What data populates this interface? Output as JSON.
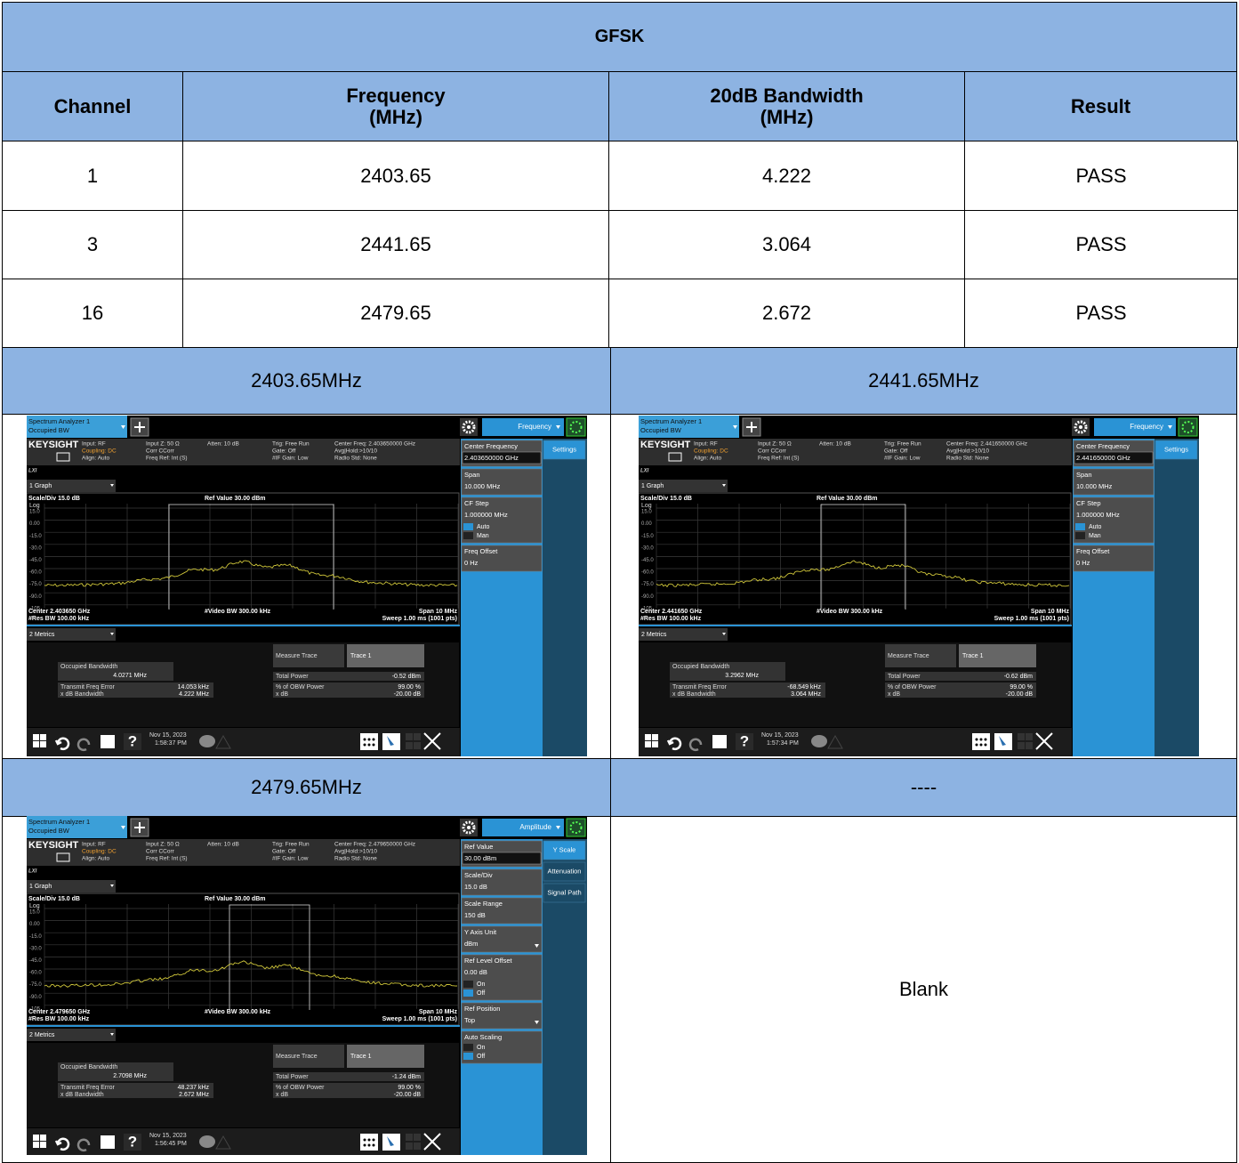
{
  "table": {
    "title": "GFSK",
    "header": [
      [
        "Channel"
      ],
      [
        "Frequency",
        "(MHz)"
      ],
      [
        "20dB Bandwidth",
        "(MHz)"
      ],
      [
        "Result"
      ]
    ],
    "rows": [
      [
        "1",
        "2403.65",
        "4.222",
        "PASS"
      ],
      [
        "3",
        "2441.65",
        "3.064",
        "PASS"
      ],
      [
        "16",
        "2479.65",
        "2.672",
        "PASS"
      ]
    ],
    "captions": [
      "2403.65MHz",
      "2441.65MHz",
      "2479.65MHz",
      "----"
    ],
    "blank": "Blank"
  },
  "screenshots": [
    {
      "tab": [
        "Spectrum Analyzer 1",
        "Occupied BW"
      ],
      "menu": "Frequency",
      "brand": "KEYSIGHT",
      "lxi": "LXI",
      "info": [
        [
          "Input: RF",
          "Coupling: DC",
          "Align: Auto"
        ],
        [
          "Input Z: 50 Ω",
          "Corr CCorr",
          "Freq Ref: Int (S)"
        ],
        [
          "Atten: 10 dB"
        ],
        [
          "Trig: Free Run",
          "Gate: Off",
          "#IF Gain: Low"
        ],
        [
          "Center Freq: 2.403650000 GHz",
          "Avg|Hold:>10/10",
          "Radio Std: None"
        ]
      ],
      "graph_tab": "1 Graph",
      "scale": "Scale/Div 15.0 dB",
      "log": "Log",
      "ref": "Ref Value 30.00 dBm",
      "y_labels": [
        "15.0",
        "0.00",
        "-15.0",
        "-30.0",
        "-45.0",
        "-60.0",
        "-75.0",
        "-90.0",
        "-105"
      ],
      "footer": {
        "center": "Center 2.403650 GHz",
        "res_bw": "#Res BW 100.00 kHz",
        "video_bw": "#Video BW 300.00 kHz",
        "span": "Span 10 MHz",
        "sweep": "Sweep 1.00 ms (1001 pts)"
      },
      "metrics_tab": "2 Metrics",
      "metrics": {
        "obw_label": "Occupied Bandwidth",
        "obw": "4.0271 MHz",
        "tfe_label": "Transmit Freq Error",
        "tfe": "14.053 kHz",
        "xdb_bw_label": "x dB Bandwidth",
        "xdb_bw": "4.222 MHz",
        "trace_label": "Measure Trace",
        "trace": "Trace 1",
        "power_label": "Total Power",
        "power": "-0.52 dBm",
        "obw_power_label": "% of OBW Power",
        "obw_power": "99.00 %",
        "xdb_label": "x dB",
        "xdb": "-20.00 dB"
      },
      "help": "?",
      "date": "Nov 15, 2023",
      "time": "1:58:37 PM",
      "menu_items": [
        {
          "label": "Center Frequency",
          "value": "2.403650000 GHz"
        },
        {
          "label": "Span",
          "value": "10.000 MHz"
        },
        {
          "label": "CF Step",
          "value": "1.000000 MHz",
          "options": [
            "Auto",
            "Man"
          ],
          "selected": 0
        },
        {
          "label": "Freq Offset",
          "value": "0 Hz"
        }
      ],
      "menu_tabs": [
        "Settings"
      ]
    },
    {
      "tab": [
        "Spectrum Analyzer 1",
        "Occupied BW"
      ],
      "menu": "Frequency",
      "brand": "KEYSIGHT",
      "lxi": "LXI",
      "info": [
        [
          "Input: RF",
          "Coupling: DC",
          "Align: Auto"
        ],
        [
          "Input Z: 50 Ω",
          "Corr CCorr",
          "Freq Ref: Int (S)"
        ],
        [
          "Atten: 10 dB"
        ],
        [
          "Trig: Free Run",
          "Gate: Off",
          "#IF Gain: Low"
        ],
        [
          "Center Freq: 2.441650000 GHz",
          "Avg|Hold:>10/10",
          "Radio Std: None"
        ]
      ],
      "graph_tab": "1 Graph",
      "scale": "Scale/Div 15.0 dB",
      "log": "Log",
      "ref": "Ref Value 30.00 dBm",
      "y_labels": [
        "15.0",
        "0.00",
        "-15.0",
        "-30.0",
        "-45.0",
        "-60.0",
        "-75.0",
        "-90.0",
        "-105"
      ],
      "footer": {
        "center": "Center 2.441650 GHz",
        "res_bw": "#Res BW 100.00 kHz",
        "video_bw": "#Video BW 300.00 kHz",
        "span": "Span 10 MHz",
        "sweep": "Sweep 1.00 ms (1001 pts)"
      },
      "metrics_tab": "2 Metrics",
      "metrics": {
        "obw_label": "Occupied Bandwidth",
        "obw": "3.2962 MHz",
        "tfe_label": "Transmit Freq Error",
        "tfe": "-68.549 kHz",
        "xdb_bw_label": "x dB Bandwidth",
        "xdb_bw": "3.064 MHz",
        "trace_label": "Measure Trace",
        "trace": "Trace 1",
        "power_label": "Total Power",
        "power": "-0.62 dBm",
        "obw_power_label": "% of OBW Power",
        "obw_power": "99.00 %",
        "xdb_label": "x dB",
        "xdb": "-20.00 dB"
      },
      "help": "?",
      "date": "Nov 15, 2023",
      "time": "1:57:34 PM",
      "menu_items": [
        {
          "label": "Center Frequency",
          "value": "2.441650000 GHz"
        },
        {
          "label": "Span",
          "value": "10.000 MHz"
        },
        {
          "label": "CF Step",
          "value": "1.000000 MHz",
          "options": [
            "Auto",
            "Man"
          ],
          "selected": 0
        },
        {
          "label": "Freq Offset",
          "value": "0 Hz"
        }
      ],
      "menu_tabs": [
        "Settings"
      ]
    },
    {
      "tab": [
        "Spectrum Analyzer 1",
        "Occupied BW"
      ],
      "menu": "Amplitude",
      "brand": "KEYSIGHT",
      "lxi": "LXI",
      "info": [
        [
          "Input: RF",
          "Coupling: DC",
          "Align: Auto"
        ],
        [
          "Input Z: 50 Ω",
          "Corr CCorr",
          "Freq Ref: Int (S)"
        ],
        [
          "Atten: 10 dB"
        ],
        [
          "Trig: Free Run",
          "Gate: Off",
          "#IF Gain: Low"
        ],
        [
          "Center Freq: 2.479650000 GHz",
          "Avg|Hold:>10/10",
          "Radio Std: None"
        ]
      ],
      "graph_tab": "1 Graph",
      "scale": "Scale/Div 15.0 dB",
      "log": "Log",
      "ref": "Ref Value 30.00 dBm",
      "y_labels": [
        "15.0",
        "0.00",
        "-15.0",
        "-30.0",
        "-45.0",
        "-60.0",
        "-75.0",
        "-90.0",
        "-105"
      ],
      "footer": {
        "center": "Center 2.479650 GHz",
        "res_bw": "#Res BW 100.00 kHz",
        "video_bw": "#Video BW 300.00 kHz",
        "span": "Span 10 MHz",
        "sweep": "Sweep 1.00 ms (1001 pts)"
      },
      "metrics_tab": "2 Metrics",
      "metrics": {
        "obw_label": "Occupied Bandwidth",
        "obw": "2.7098 MHz",
        "tfe_label": "Transmit Freq Error",
        "tfe": "48.237 kHz",
        "xdb_bw_label": "x dB Bandwidth",
        "xdb_bw": "2.672 MHz",
        "trace_label": "Measure Trace",
        "trace": "Trace 1",
        "power_label": "Total Power",
        "power": "-1.24 dBm",
        "obw_power_label": "% of OBW Power",
        "obw_power": "99.00 %",
        "xdb_label": "x dB",
        "xdb": "-20.00 dB"
      },
      "help": "?",
      "date": "Nov 15, 2023",
      "time": "1:56:45 PM",
      "menu_items": [
        {
          "label": "Ref Value",
          "value": "30.00 dBm"
        },
        {
          "label": "Scale/Div",
          "value": "15.0 dB"
        },
        {
          "label": "Scale Range",
          "value": "150 dB"
        },
        {
          "label": "Y Axis Unit",
          "value": "dBm",
          "dropdown": true
        },
        {
          "label": "Ref Level Offset",
          "value": "0.00 dB",
          "options": [
            "On",
            "Off"
          ],
          "selected": 1
        },
        {
          "label": "Ref Position",
          "value": "Top",
          "dropdown": true
        },
        {
          "label": "Auto Scaling",
          "options": [
            "On",
            "Off"
          ],
          "selected": 1
        }
      ],
      "menu_tabs": [
        "Y Scale",
        "Attenuation",
        "Signal Path"
      ]
    }
  ]
}
